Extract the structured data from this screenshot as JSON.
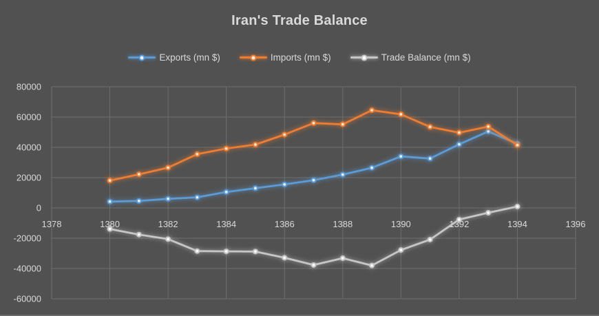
{
  "window": {
    "background_color": "#515151",
    "gridline_color": "#6E6E6E",
    "text_color": "#D9D9D9",
    "bottom_edge_color": "#6A6A6A"
  },
  "chart_data": {
    "type": "line",
    "title": "Iran's Trade Balance",
    "xlabel": "",
    "ylabel": "",
    "grid": true,
    "legend_position": "top",
    "x": [
      1380,
      1381,
      1382,
      1383,
      1384,
      1385,
      1386,
      1387,
      1388,
      1389,
      1390,
      1391,
      1392,
      1393,
      1394
    ],
    "series": [
      {
        "name": "Exports (mn $)",
        "color": "#5B9BD5",
        "marker_center_color": "#EAF2FA",
        "values": [
          4200,
          4600,
          6000,
          7000,
          10500,
          13000,
          15500,
          18300,
          22000,
          26500,
          34000,
          32600,
          42000,
          50500,
          42400
        ]
      },
      {
        "name": "Imports (mn $)",
        "color": "#ED7D31",
        "marker_center_color": "#FBEADC",
        "values": [
          18100,
          22200,
          26600,
          35500,
          39200,
          41800,
          48400,
          56000,
          55200,
          64500,
          61800,
          53500,
          49700,
          53700,
          41500
        ]
      },
      {
        "name": "Trade Balance (mn $)",
        "color": "#C6C6C6",
        "marker_center_color": "#FFFFFF",
        "values": [
          -13900,
          -17600,
          -20600,
          -28500,
          -28700,
          -28800,
          -32900,
          -37700,
          -33200,
          -38000,
          -27800,
          -20900,
          -7700,
          -3200,
          900
        ]
      }
    ],
    "x_axis": {
      "min": 1378,
      "max": 1396,
      "ticks": [
        1378,
        1380,
        1382,
        1384,
        1386,
        1388,
        1390,
        1392,
        1394,
        1396
      ]
    },
    "y_axis": {
      "min": -60000,
      "max": 80000,
      "ticks": [
        80000,
        60000,
        40000,
        20000,
        0,
        -20000,
        -40000,
        -60000
      ]
    },
    "xlim": [
      1378,
      1396
    ],
    "ylim": [
      -60000,
      80000
    ]
  }
}
